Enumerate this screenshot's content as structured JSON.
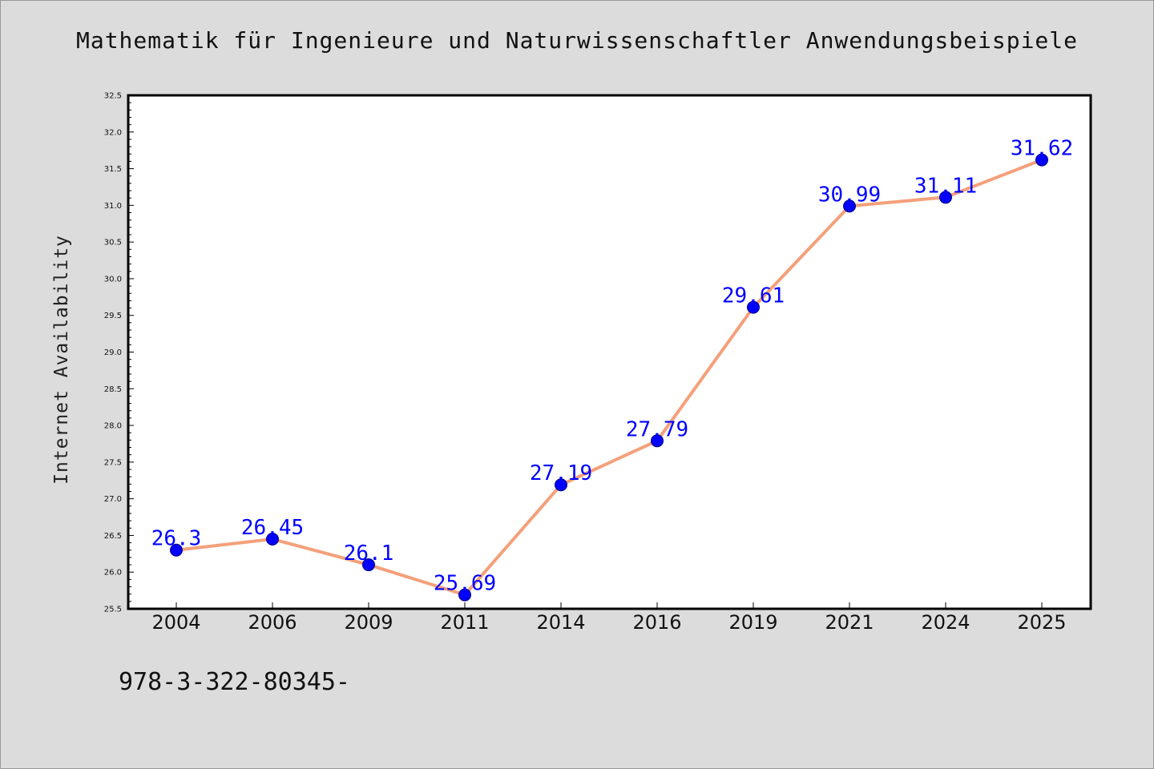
{
  "chart_data": {
    "type": "line",
    "title": "Mathematik für Ingenieure und Naturwissenschaftler Anwendungsbeispiele",
    "xlabel": "",
    "ylabel": "Internet Availability",
    "categories": [
      "2004",
      "2006",
      "2009",
      "2011",
      "2014",
      "2016",
      "2019",
      "2021",
      "2024",
      "2025"
    ],
    "series": [
      {
        "values": [
          26.3,
          26.45,
          26.1,
          25.69,
          27.19,
          27.79,
          29.61,
          30.99,
          31.11,
          31.62
        ],
        "data_labels": [
          "26.3",
          "26.45",
          "26.1",
          "25.69",
          "27.19",
          "27.79",
          "29.61",
          "30.99",
          "31.11",
          "31.62"
        ]
      }
    ],
    "ylim": [
      25.5,
      32.5
    ],
    "yticks": [
      25.5,
      26.0,
      26.5,
      27.0,
      27.5,
      28.0,
      28.5,
      29.0,
      29.5,
      30.0,
      30.5,
      31.0,
      31.5,
      32.0,
      32.5
    ],
    "ytick_labels": [
      "25.5",
      "26.0",
      "26.5",
      "27.0",
      "27.5",
      "28.0",
      "28.5",
      "29.0",
      "29.5",
      "30.0",
      "30.5",
      "31.0",
      "31.5",
      "32.0",
      "32.5"
    ],
    "grid": false,
    "legend": "none",
    "colors": {
      "line": "#f4a07a",
      "marker": "#0000ff",
      "data_label": "#0000ff",
      "axes": "#000000",
      "plot_background": "#ffffff",
      "page_background": "#dcdcdc"
    }
  },
  "footer": {
    "code": "978-3-322-80345-"
  }
}
